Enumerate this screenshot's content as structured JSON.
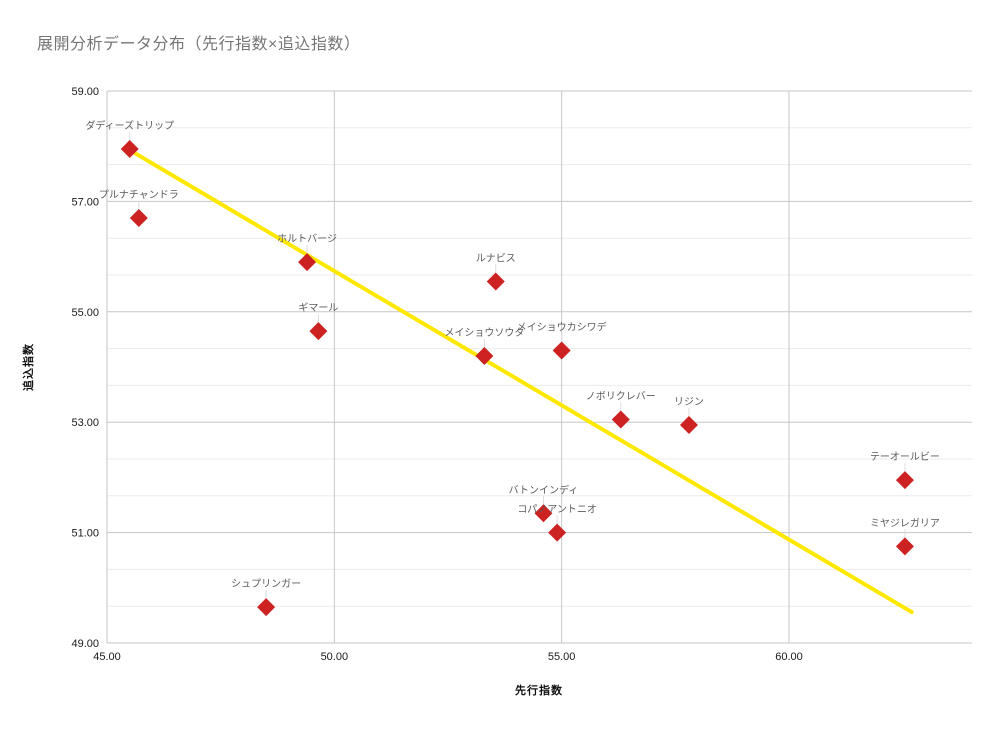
{
  "title": "展開分析データ分布（先行指数×追込指数）",
  "chart_data": {
    "type": "scatter",
    "title": "展開分析データ分布（先行指数×追込指数）",
    "xlabel": "先行指数",
    "ylabel": "追込指数",
    "xlim": [
      45.0,
      64.0
    ],
    "ylim": [
      49.0,
      59.0
    ],
    "x_tick_values": [
      45,
      50,
      55,
      60
    ],
    "x_tick_labels": [
      "45.00",
      "50.00",
      "55.00",
      "60.00"
    ],
    "y_tick_values": [
      49,
      51,
      53,
      55,
      57,
      59
    ],
    "y_tick_labels": [
      "49.00",
      "51.00",
      "53.00",
      "55.00",
      "57.00",
      "59.00"
    ],
    "grid": "on",
    "legend_position": "none",
    "marker": "diamond",
    "points": [
      {
        "label": "ダディーズトリップ",
        "x": 45.5,
        "y": 57.95
      },
      {
        "label": "プルナチャンドラ",
        "x": 45.7,
        "y": 56.7
      },
      {
        "label": "ホルトバージ",
        "x": 49.4,
        "y": 55.9
      },
      {
        "label": "ギマール",
        "x": 49.65,
        "y": 54.65
      },
      {
        "label": "ルナビス",
        "x": 53.55,
        "y": 55.55
      },
      {
        "label": "メイショウソウタ",
        "x": 53.3,
        "y": 54.2
      },
      {
        "label": "メイショウカシワデ",
        "x": 55.0,
        "y": 54.3
      },
      {
        "label": "ノボリクレバー",
        "x": 56.3,
        "y": 53.05
      },
      {
        "label": "リジン",
        "x": 57.8,
        "y": 52.95
      },
      {
        "label": "バトンインディ",
        "x": 54.6,
        "y": 51.35
      },
      {
        "label": "コパノアントニオ",
        "x": 54.9,
        "y": 51.0
      },
      {
        "label": "テーオールビー",
        "x": 62.55,
        "y": 51.95
      },
      {
        "label": "ミヤジレガリア",
        "x": 62.55,
        "y": 50.75
      },
      {
        "label": "シュプリンガー",
        "x": 48.5,
        "y": 49.65
      }
    ],
    "trendline": {
      "x1": 45.6,
      "y1": 57.88,
      "x2": 62.7,
      "y2": 49.56
    }
  },
  "colors": {
    "point": "#CC2222",
    "trendline": "#FFE800",
    "title_text": "#757575",
    "grid_minor": "#ebebeb",
    "grid_major": "#c6c6c6",
    "tick_text": "#1a1a1a",
    "point_label_text": "#5b5b5b",
    "leader_line": "#dcdcdc",
    "background": "#ffffff"
  }
}
